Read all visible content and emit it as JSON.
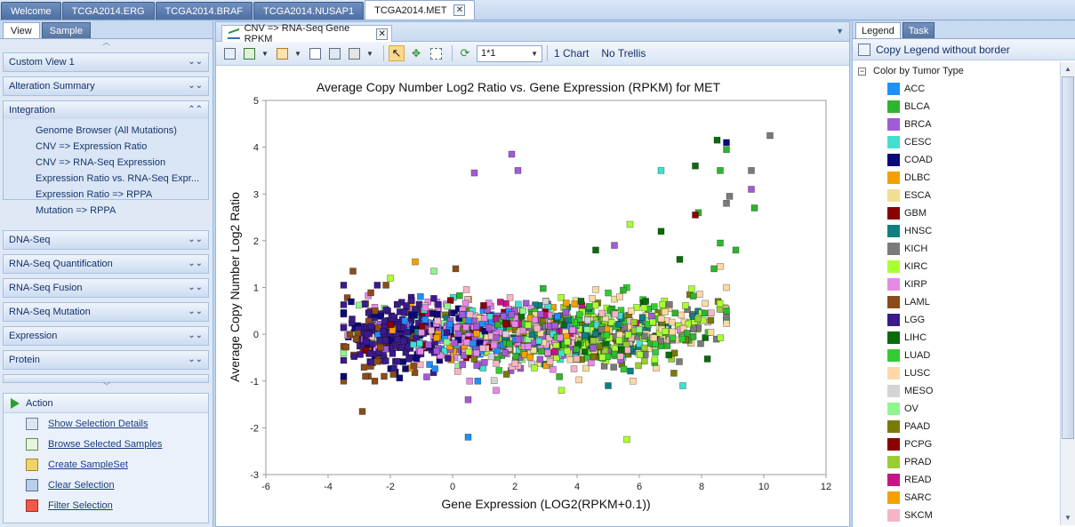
{
  "doc_tabs": [
    "Welcome",
    "TCGA2014.ERG",
    "TCGA2014.BRAF",
    "TCGA2014.NUSAP1",
    "TCGA2014.MET"
  ],
  "left_tabs": [
    "View",
    "Sample"
  ],
  "sections": {
    "custom_view": "Custom View 1",
    "alteration": "Alteration Summary",
    "integration": "Integration",
    "dnaseq": "DNA-Seq",
    "rnaseq_quant": "RNA-Seq Quantification",
    "rnaseq_fusion": "RNA-Seq Fusion",
    "rnaseq_mutation": "RNA-Seq Mutation",
    "expression": "Expression",
    "protein": "Protein"
  },
  "integration_items": [
    "Genome Browser (All Mutations)",
    "CNV => Expression Ratio",
    "CNV => RNA-Seq Expression",
    "Expression Ratio vs. RNA-Seq Expr...",
    "Expression Ratio => RPPA",
    "Mutation => RPPA"
  ],
  "action": {
    "title": "Action",
    "items": [
      "Show Selection Details",
      "Browse Selected Samples",
      "Create SampleSet",
      "Clear Selection",
      "Filter Selection"
    ]
  },
  "view_tab": "CNV => RNA-Seq Gene RPKM",
  "toolbar": {
    "layout_value": "1*1",
    "chart_count": "1 Chart",
    "trellis": "No Trellis"
  },
  "right_tabs": [
    "Legend",
    "Task"
  ],
  "legend": {
    "copy_label": "Copy Legend  without border",
    "title": "Color by Tumor Type",
    "items": [
      {
        "label": "ACC",
        "color": "#1e90ff"
      },
      {
        "label": "BLCA",
        "color": "#2fb52f"
      },
      {
        "label": "BRCA",
        "color": "#a25bd6"
      },
      {
        "label": "CESC",
        "color": "#40e0d0"
      },
      {
        "label": "COAD",
        "color": "#0a0a78"
      },
      {
        "label": "DLBC",
        "color": "#f5a000"
      },
      {
        "label": "ESCA",
        "color": "#f0e090"
      },
      {
        "label": "GBM",
        "color": "#8b0000"
      },
      {
        "label": "HNSC",
        "color": "#0f7f7f"
      },
      {
        "label": "KICH",
        "color": "#7a7a7a"
      },
      {
        "label": "KIRC",
        "color": "#aaff33"
      },
      {
        "label": "KIRP",
        "color": "#e58ae5"
      },
      {
        "label": "LAML",
        "color": "#8b4c1a"
      },
      {
        "label": "LGG",
        "color": "#3b1a8c"
      },
      {
        "label": "LIHC",
        "color": "#0b6b0b"
      },
      {
        "label": "LUAD",
        "color": "#33cc33"
      },
      {
        "label": "LUSC",
        "color": "#ffd8a8"
      },
      {
        "label": "MESO",
        "color": "#d4d4d4"
      },
      {
        "label": "OV",
        "color": "#8ff58f"
      },
      {
        "label": "PAAD",
        "color": "#7a7a0a"
      },
      {
        "label": "PCPG",
        "color": "#8b0000"
      },
      {
        "label": "PRAD",
        "color": "#9acd32"
      },
      {
        "label": "READ",
        "color": "#c71585"
      },
      {
        "label": "SARC",
        "color": "#f5a000"
      },
      {
        "label": "SKCM",
        "color": "#f5b5c5"
      }
    ]
  },
  "chart_data": {
    "type": "scatter",
    "title": "Average Copy Number Log2 Ratio vs. Gene Expression (RPKM) for MET",
    "xlabel": "Gene Expression (LOG2(RPKM+0.1))",
    "ylabel": "Average Copy Number Log2 Ratio",
    "xlim": [
      -6,
      12
    ],
    "ylim": [
      -3,
      5
    ],
    "xticks": [
      -6,
      -4,
      -2,
      0,
      2,
      4,
      6,
      8,
      10,
      12
    ],
    "yticks": [
      -3,
      -2,
      -1,
      0,
      1,
      2,
      3,
      4,
      5
    ],
    "grid": false,
    "series_outliers": [
      {
        "x": 1.9,
        "y": 3.85,
        "c": "BRCA"
      },
      {
        "x": 2.1,
        "y": 3.5,
        "c": "BRCA"
      },
      {
        "x": 0.7,
        "y": 3.45,
        "c": "BRCA"
      },
      {
        "x": 6.7,
        "y": 3.5,
        "c": "CESC"
      },
      {
        "x": 7.8,
        "y": 3.6,
        "c": "LIHC"
      },
      {
        "x": 8.5,
        "y": 4.15,
        "c": "LIHC"
      },
      {
        "x": 8.8,
        "y": 4.1,
        "c": "COAD"
      },
      {
        "x": 8.8,
        "y": 3.95,
        "c": "BLCA"
      },
      {
        "x": 10.2,
        "y": 4.25,
        "c": "KICH"
      },
      {
        "x": 8.6,
        "y": 3.5,
        "c": "BLCA"
      },
      {
        "x": 9.6,
        "y": 3.5,
        "c": "KICH"
      },
      {
        "x": 9.6,
        "y": 3.1,
        "c": "BRCA"
      },
      {
        "x": 8.9,
        "y": 2.95,
        "c": "KICH"
      },
      {
        "x": 8.8,
        "y": 2.8,
        "c": "KICH"
      },
      {
        "x": 9.7,
        "y": 2.7,
        "c": "BLCA"
      },
      {
        "x": 7.9,
        "y": 2.6,
        "c": "BLCA"
      },
      {
        "x": 7.8,
        "y": 2.55,
        "c": "GBM"
      },
      {
        "x": 6.7,
        "y": 2.2,
        "c": "LIHC"
      },
      {
        "x": 5.7,
        "y": 2.35,
        "c": "KIRC"
      },
      {
        "x": 5.2,
        "y": 1.9,
        "c": "BRCA"
      },
      {
        "x": 8.6,
        "y": 1.95,
        "c": "BLCA"
      },
      {
        "x": 4.6,
        "y": 1.8,
        "c": "LIHC"
      },
      {
        "x": 9.1,
        "y": 1.8,
        "c": "BLCA"
      },
      {
        "x": 7.3,
        "y": 1.6,
        "c": "LIHC"
      },
      {
        "x": 8.6,
        "y": 1.45,
        "c": "LUSC"
      },
      {
        "x": 8.4,
        "y": 1.4,
        "c": "BLCA"
      },
      {
        "x": -1.2,
        "y": 1.55,
        "c": "DLBC"
      },
      {
        "x": -3.2,
        "y": 1.35,
        "c": "LAML"
      },
      {
        "x": -0.6,
        "y": 1.35,
        "c": "OV"
      },
      {
        "x": 0.1,
        "y": 1.4,
        "c": "LAML"
      },
      {
        "x": -2.0,
        "y": 1.2,
        "c": "KIRC"
      },
      {
        "x": 0.5,
        "y": -2.2,
        "c": "ACC"
      },
      {
        "x": 5.6,
        "y": -2.25,
        "c": "KIRC"
      },
      {
        "x": -2.9,
        "y": -1.65,
        "c": "LAML"
      },
      {
        "x": 0.5,
        "y": -1.4,
        "c": "BRCA"
      },
      {
        "x": 7.4,
        "y": -1.1,
        "c": "CESC"
      },
      {
        "x": 5.0,
        "y": -1.1,
        "c": "HNSC"
      },
      {
        "x": 1.4,
        "y": -1.2,
        "c": "KIRP"
      },
      {
        "x": 3.5,
        "y": -1.2,
        "c": "KIRC"
      },
      {
        "x": 8.1,
        "y": 0.45,
        "c": "BLCA"
      },
      {
        "x": 8.8,
        "y": 0.5,
        "c": "BLCA"
      },
      {
        "x": 8.8,
        "y": 1.0,
        "c": "LUSC"
      },
      {
        "x": -3.1,
        "y": -0.1,
        "c": "LAML"
      },
      {
        "x": -3.3,
        "y": 0.0,
        "c": "LAML"
      },
      {
        "x": -2.8,
        "y": -0.9,
        "c": "LAML"
      },
      {
        "x": -2.5,
        "y": -1.0,
        "c": "LAML"
      },
      {
        "x": -2.2,
        "y": -0.9,
        "c": "LAML"
      }
    ],
    "cluster": {
      "x_range": [
        -3.5,
        8.8
      ],
      "y_center": 0.0,
      "count": 1500
    }
  }
}
